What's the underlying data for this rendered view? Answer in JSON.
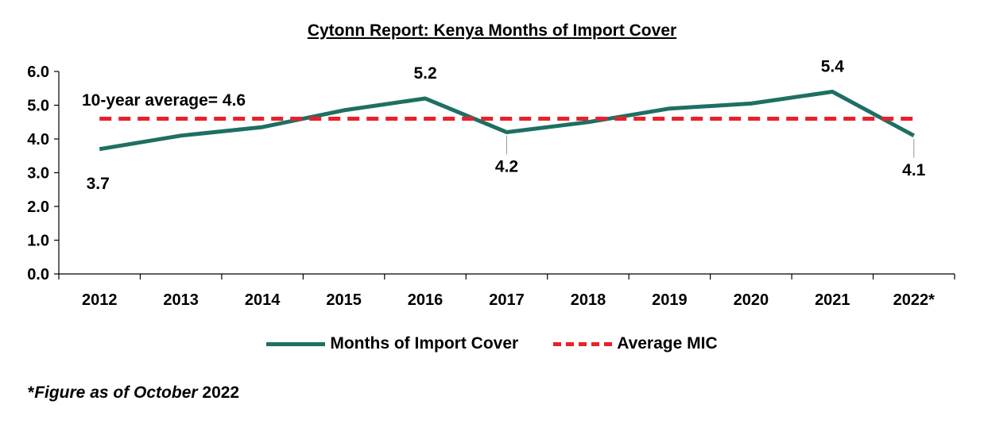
{
  "chart_data": {
    "type": "line",
    "title": "Cytonn Report: Kenya Months of Import Cover",
    "categories": [
      "2012",
      "2013",
      "2014",
      "2015",
      "2016",
      "2017",
      "2018",
      "2019",
      "2020",
      "2021",
      "2022*"
    ],
    "series": [
      {
        "name": "Months of Import Cover",
        "values": [
          3.7,
          4.1,
          4.35,
          4.85,
          5.2,
          4.2,
          4.5,
          4.9,
          5.05,
          5.4,
          4.1
        ],
        "color": "#1d7063",
        "style": "solid"
      },
      {
        "name": "Average MIC",
        "values": [
          4.6,
          4.6,
          4.6,
          4.6,
          4.6,
          4.6,
          4.6,
          4.6,
          4.6,
          4.6,
          4.6
        ],
        "color": "#e8212a",
        "style": "dashed"
      }
    ],
    "ylim": [
      0,
      6
    ],
    "yticks": [
      "0.0",
      "1.0",
      "2.0",
      "3.0",
      "4.0",
      "5.0",
      "6.0"
    ],
    "xlabel": "",
    "ylabel": "",
    "grid": false,
    "legend_position": "bottom",
    "data_labels": [
      {
        "category": "2012",
        "text": "3.7"
      },
      {
        "category": "2016",
        "text": "5.2"
      },
      {
        "category": "2017",
        "text": "4.2"
      },
      {
        "category": "2021",
        "text": "5.4"
      },
      {
        "category": "2022*",
        "text": "4.1"
      }
    ],
    "annotation": "10-year average= 4.6"
  },
  "footnote": {
    "prefix": "*",
    "italic": "Figure as of October",
    "suffix": " 2022"
  }
}
